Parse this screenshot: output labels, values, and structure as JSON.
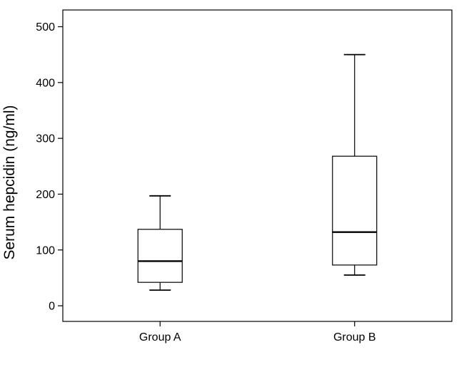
{
  "chart_data": {
    "type": "boxplot",
    "title": "",
    "xlabel": "",
    "ylabel": "Serum hepcidin (ng/ml)",
    "ylim": [
      -28,
      530
    ],
    "yticks": [
      0,
      100,
      200,
      300,
      400,
      500
    ],
    "yticklabels": [
      "0",
      "100",
      "200",
      "300",
      "400",
      "500"
    ],
    "grid": false,
    "legend": "none",
    "categories": [
      "Group A",
      "Group B"
    ],
    "boxes": [
      {
        "category": "Group A",
        "whisker_low": 28,
        "q1": 42,
        "median": 80,
        "q3": 137,
        "whisker_high": 197
      },
      {
        "category": "Group B",
        "whisker_low": 55,
        "q1": 73,
        "median": 132,
        "q3": 268,
        "whisker_high": 450
      }
    ]
  }
}
